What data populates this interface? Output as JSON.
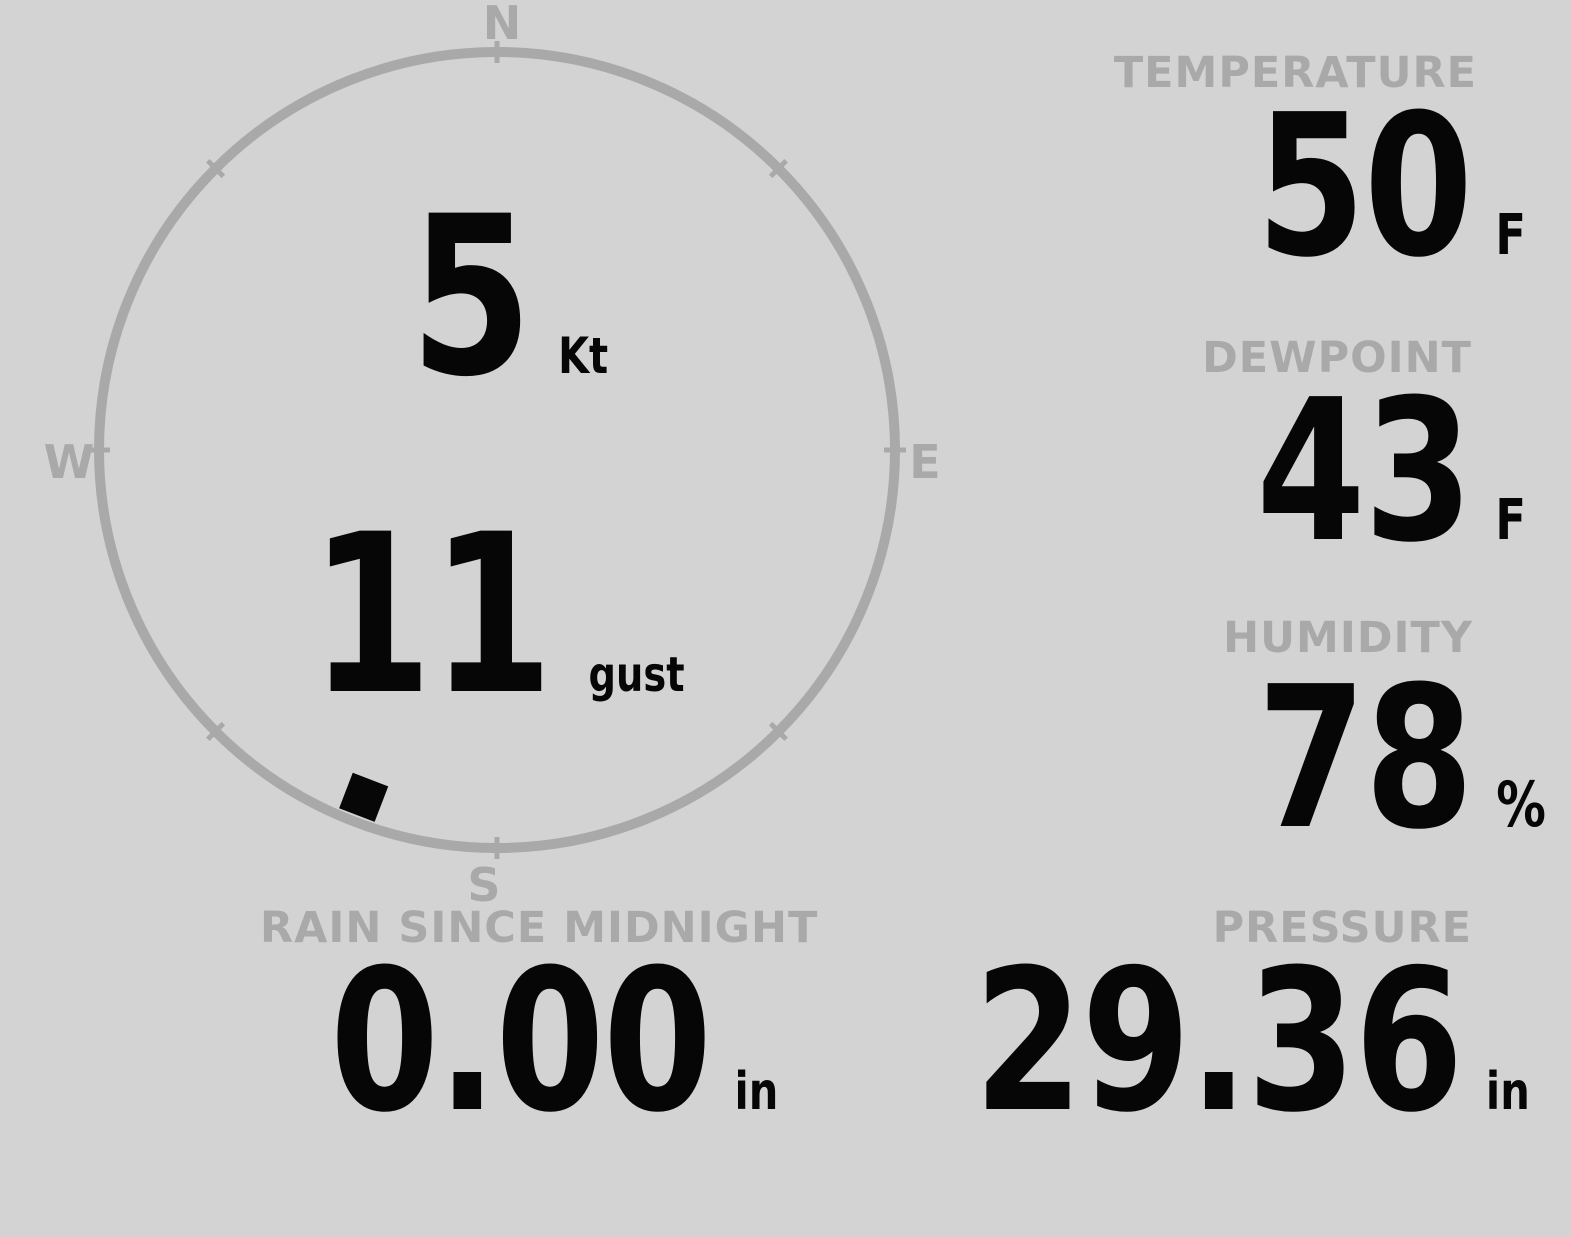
{
  "theme": {
    "background": "#d3d3d3",
    "value_color": "#060606",
    "muted_color": "#a9a9a9"
  },
  "compass": {
    "north_label": "N",
    "east_label": "E",
    "south_label": "S",
    "west_label": "W",
    "wind_direction_deg": 201,
    "wind_speed": {
      "value": "5",
      "unit": "Kt"
    },
    "wind_gust": {
      "value": "11",
      "unit": "gust"
    }
  },
  "metrics": {
    "temperature": {
      "label": "TEMPERATURE",
      "value": "50",
      "unit": "F"
    },
    "dewpoint": {
      "label": "DEWPOINT",
      "value": "43",
      "unit": "F"
    },
    "humidity": {
      "label": "HUMIDITY",
      "value": "78",
      "unit": "%"
    },
    "pressure": {
      "label": "PRESSURE",
      "value": "29.36",
      "unit": "in"
    },
    "rain": {
      "label": "RAIN SINCE MIDNIGHT",
      "value": "0.00",
      "unit": "in"
    }
  }
}
